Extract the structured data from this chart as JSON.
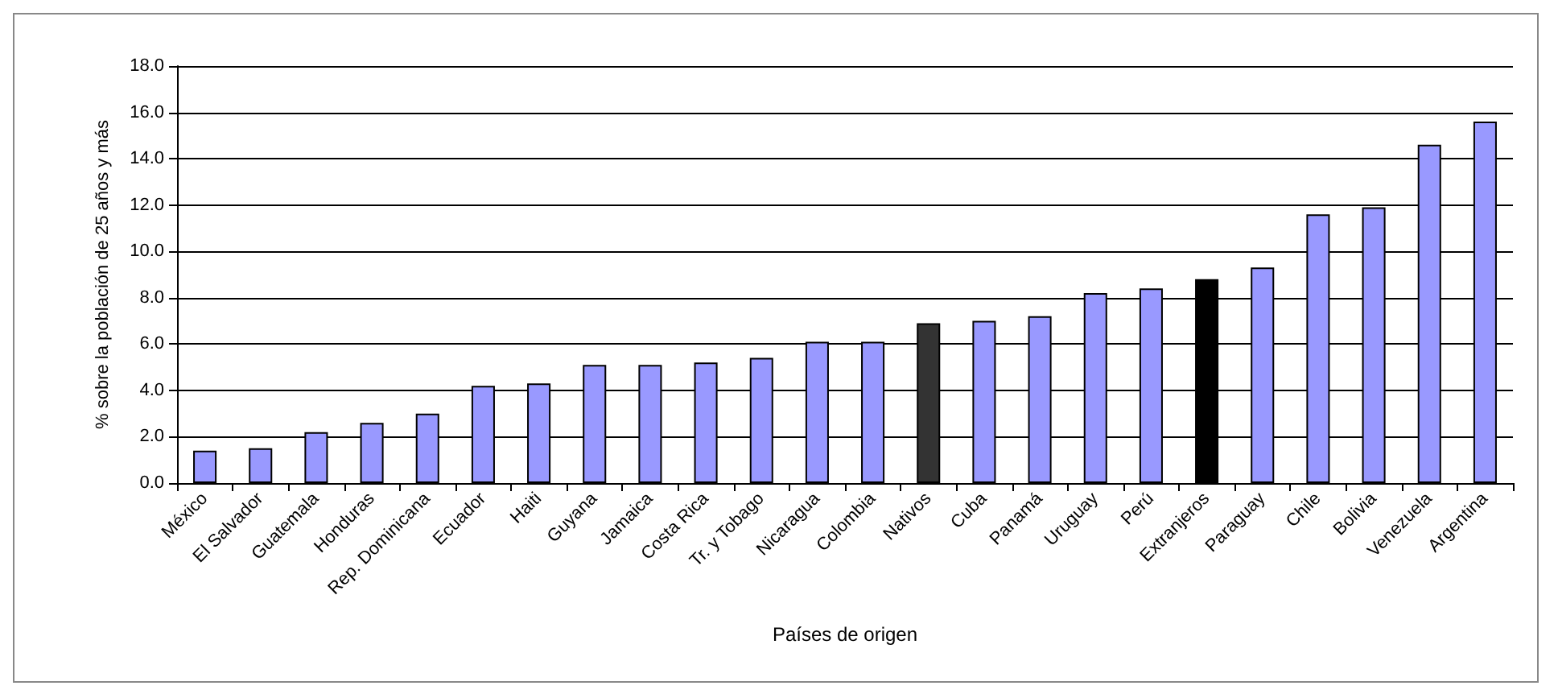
{
  "chart_data": {
    "type": "bar",
    "xlabel": "Países de origen",
    "ylabel": "% sobre la población de 25 años y más",
    "categories": [
      "México",
      "El Salvador",
      "Guatemala",
      "Honduras",
      "Rep. Dominicana",
      "Ecuador",
      "Haiti",
      "Guyana",
      "Jamaica",
      "Costa Rica",
      "Tr. y Tobago",
      "Nicaragua",
      "Colombia",
      "Nativos",
      "Cuba",
      "Panamá",
      "Uruguay",
      "Perú",
      "Extranjeros",
      "Paraguay",
      "Chile",
      "Bolivia",
      "Venezuela",
      "Argentina"
    ],
    "values": [
      1.4,
      1.5,
      2.2,
      2.6,
      3.0,
      4.2,
      4.3,
      5.1,
      5.1,
      5.2,
      5.4,
      6.1,
      6.1,
      6.9,
      7.0,
      7.2,
      8.2,
      8.4,
      8.8,
      9.3,
      11.6,
      11.9,
      14.6,
      15.6
    ],
    "colors": [
      "#9999ff",
      "#9999ff",
      "#9999ff",
      "#9999ff",
      "#9999ff",
      "#9999ff",
      "#9999ff",
      "#9999ff",
      "#9999ff",
      "#9999ff",
      "#9999ff",
      "#9999ff",
      "#9999ff",
      "#333333",
      "#9999ff",
      "#9999ff",
      "#9999ff",
      "#9999ff",
      "#000000",
      "#9999ff",
      "#9999ff",
      "#9999ff",
      "#9999ff",
      "#9999ff"
    ],
    "ylim": [
      0,
      18
    ],
    "yticks": [
      {
        "value": 0,
        "label": "0.0"
      },
      {
        "value": 2,
        "label": "2.0"
      },
      {
        "value": 4,
        "label": "4.0"
      },
      {
        "value": 6,
        "label": "6.0"
      },
      {
        "value": 8,
        "label": "8.0"
      },
      {
        "value": 10,
        "label": "10.0"
      },
      {
        "value": 12,
        "label": "12.0"
      },
      {
        "value": 14,
        "label": "14.0"
      },
      {
        "value": 16,
        "label": "16.0"
      },
      {
        "value": 18,
        "label": "18.0"
      }
    ],
    "grid": "y"
  }
}
